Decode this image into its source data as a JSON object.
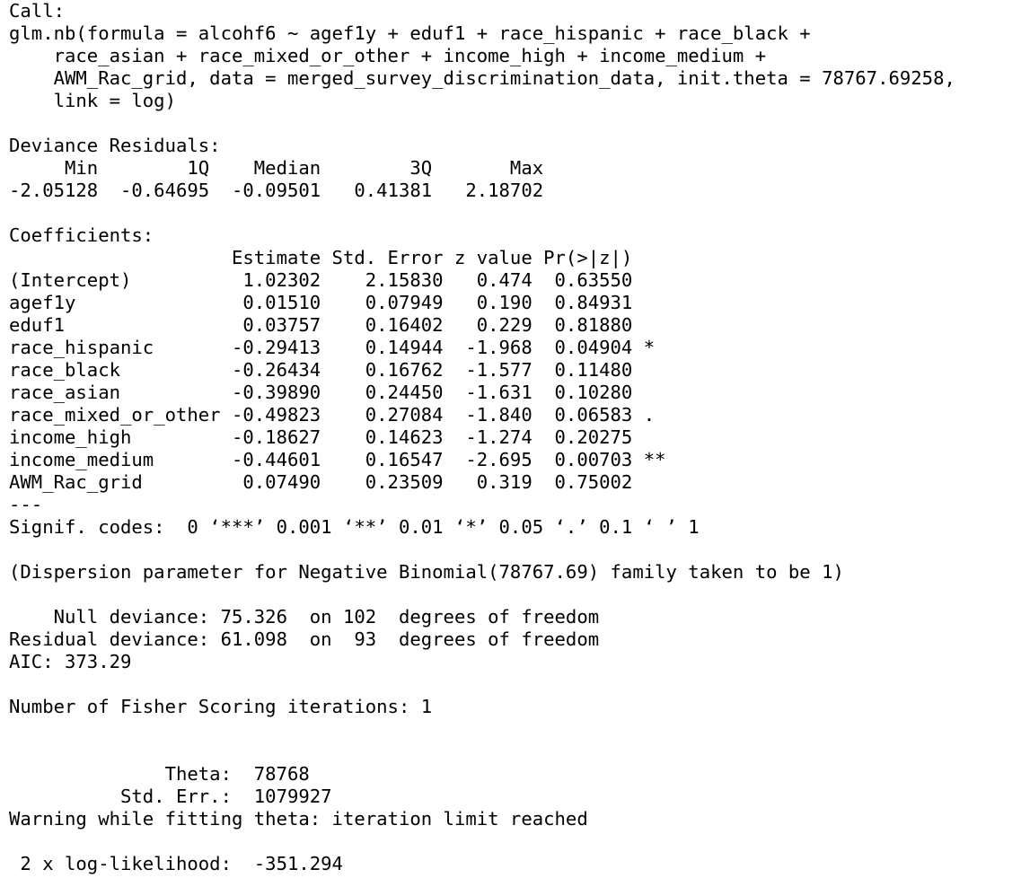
{
  "console": {
    "lines": [
      "Call:",
      "glm.nb(formula = alcohf6 ~ agef1y + eduf1 + race_hispanic + race_black +",
      "    race_asian + race_mixed_or_other + income_high + income_medium +",
      "    AWM_Rac_grid, data = merged_survey_discrimination_data, init.theta = 78767.69258,",
      "    link = log)",
      "",
      "Deviance Residuals:",
      "     Min        1Q    Median        3Q       Max",
      "-2.05128  -0.64695  -0.09501   0.41381   2.18702",
      "",
      "Coefficients:",
      "                    Estimate Std. Error z value Pr(>|z|)",
      "(Intercept)          1.02302    2.15830   0.474  0.63550",
      "agef1y               0.01510    0.07949   0.190  0.84931",
      "eduf1                0.03757    0.16402   0.229  0.81880",
      "race_hispanic       -0.29413    0.14944  -1.968  0.04904 *",
      "race_black          -0.26434    0.16762  -1.577  0.11480",
      "race_asian          -0.39890    0.24450  -1.631  0.10280",
      "race_mixed_or_other -0.49823    0.27084  -1.840  0.06583 .",
      "income_high         -0.18627    0.14623  -1.274  0.20275",
      "income_medium       -0.44601    0.16547  -2.695  0.00703 **",
      "AWM_Rac_grid         0.07490    0.23509   0.319  0.75002",
      "---",
      "Signif. codes:  0 ‘***’ 0.001 ‘**’ 0.01 ‘*’ 0.05 ‘.’ 0.1 ‘ ’ 1",
      "",
      "(Dispersion parameter for Negative Binomial(78767.69) family taken to be 1)",
      "",
      "    Null deviance: 75.326  on 102  degrees of freedom",
      "Residual deviance: 61.098  on  93  degrees of freedom",
      "AIC: 373.29",
      "",
      "Number of Fisher Scoring iterations: 1",
      "",
      "",
      "              Theta:  78768",
      "          Std. Err.:  1079927",
      "Warning while fitting theta: iteration limit reached",
      "",
      " 2 x log-likelihood:  -351.294"
    ]
  }
}
